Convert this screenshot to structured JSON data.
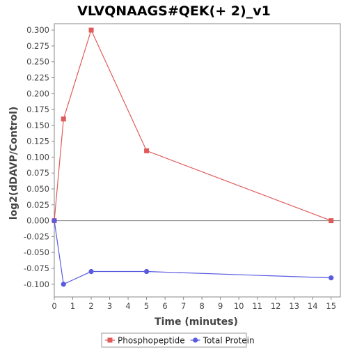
{
  "chart_data": {
    "type": "line",
    "title": "VLVQNAAGS#QEK(+ 2)_v1",
    "xlabel": "Time (minutes)",
    "ylabel": "log2(dDAVP/Control)",
    "xlim": [
      0,
      15.5
    ],
    "ylim": [
      -0.12,
      0.31
    ],
    "x_ticks": [
      0,
      1,
      2,
      3,
      4,
      5,
      6,
      7,
      8,
      9,
      10,
      11,
      12,
      13,
      14,
      15
    ],
    "y_ticks": [
      -0.1,
      -0.075,
      -0.05,
      -0.025,
      0,
      0.025,
      0.05,
      0.075,
      0.1,
      0.125,
      0.15,
      0.175,
      0.2,
      0.225,
      0.25,
      0.275,
      0.3
    ],
    "y_tick_labels": [
      "-0.100",
      "-0.075",
      "-0.050",
      "-0.025",
      "0.000",
      "0.025",
      "0.050",
      "0.075",
      "0.100",
      "0.125",
      "0.150",
      "0.175",
      "0.200",
      "0.225",
      "0.250",
      "0.275",
      "0.300"
    ],
    "zero_line": true,
    "grid": false,
    "legend_position": "bottom",
    "series": [
      {
        "name": "Phosphopeptide",
        "color": "#e05a5a",
        "marker": "square",
        "x": [
          0,
          0.5,
          2,
          5,
          15
        ],
        "y": [
          0.0,
          0.16,
          0.3,
          0.11,
          0.0
        ]
      },
      {
        "name": "Total Protein",
        "color": "#5a5ae0",
        "marker": "circle",
        "x": [
          0,
          0.5,
          2,
          5,
          15
        ],
        "y": [
          0.0,
          -0.1,
          -0.08,
          -0.08,
          -0.09
        ]
      }
    ]
  }
}
